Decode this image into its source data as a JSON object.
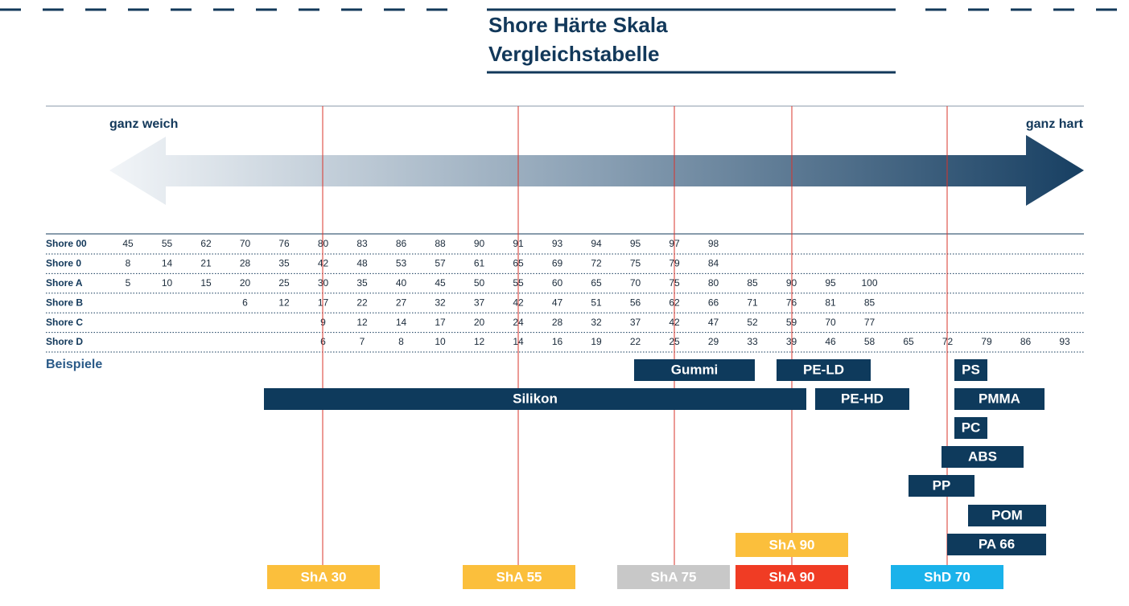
{
  "header": {
    "title": [
      "Shore Härte Skala",
      "Vergleichstabelle"
    ]
  },
  "scale": {
    "soft": "ganz weich",
    "hard": "ganz hart"
  },
  "table": {
    "rows": [
      {
        "label": "Shore 00",
        "values": [
          45,
          55,
          62,
          70,
          76,
          80,
          83,
          86,
          88,
          90,
          91,
          93,
          94,
          95,
          97,
          98,
          null,
          null,
          null,
          null,
          null,
          null,
          null,
          null,
          null
        ]
      },
      {
        "label": "Shore 0",
        "values": [
          8,
          14,
          21,
          28,
          35,
          42,
          48,
          53,
          57,
          61,
          65,
          69,
          72,
          75,
          79,
          84,
          null,
          null,
          null,
          null,
          null,
          null,
          null,
          null,
          null
        ]
      },
      {
        "label": "Shore A",
        "values": [
          5,
          10,
          15,
          20,
          25,
          30,
          35,
          40,
          45,
          50,
          55,
          60,
          65,
          70,
          75,
          80,
          85,
          90,
          95,
          100,
          null,
          null,
          null,
          null,
          null
        ]
      },
      {
        "label": "Shore B",
        "values": [
          null,
          null,
          null,
          6,
          12,
          17,
          22,
          27,
          32,
          37,
          42,
          47,
          51,
          56,
          62,
          66,
          71,
          76,
          81,
          85,
          null,
          null,
          null,
          null,
          null
        ]
      },
      {
        "label": "Shore C",
        "values": [
          null,
          null,
          null,
          null,
          null,
          9,
          12,
          14,
          17,
          20,
          24,
          28,
          32,
          37,
          42,
          47,
          52,
          59,
          70,
          77,
          null,
          null,
          null,
          null,
          null
        ]
      },
      {
        "label": "Shore D",
        "values": [
          null,
          null,
          null,
          null,
          null,
          6,
          7,
          8,
          10,
          12,
          14,
          16,
          19,
          22,
          25,
          29,
          33,
          39,
          46,
          58,
          65,
          72,
          79,
          86,
          93
        ]
      }
    ]
  },
  "examples": {
    "label": "Beispiele",
    "items": [
      "Gummi",
      "PE-LD",
      "Silikon",
      "PE-HD",
      "PS",
      "PMMA",
      "PC",
      "ABS",
      "PP",
      "POM",
      "PA 66"
    ]
  },
  "tags": [
    "ShA 30",
    "ShA 55",
    "ShA 75",
    "ShA 90",
    "ShA 90",
    "ShD 70"
  ]
}
